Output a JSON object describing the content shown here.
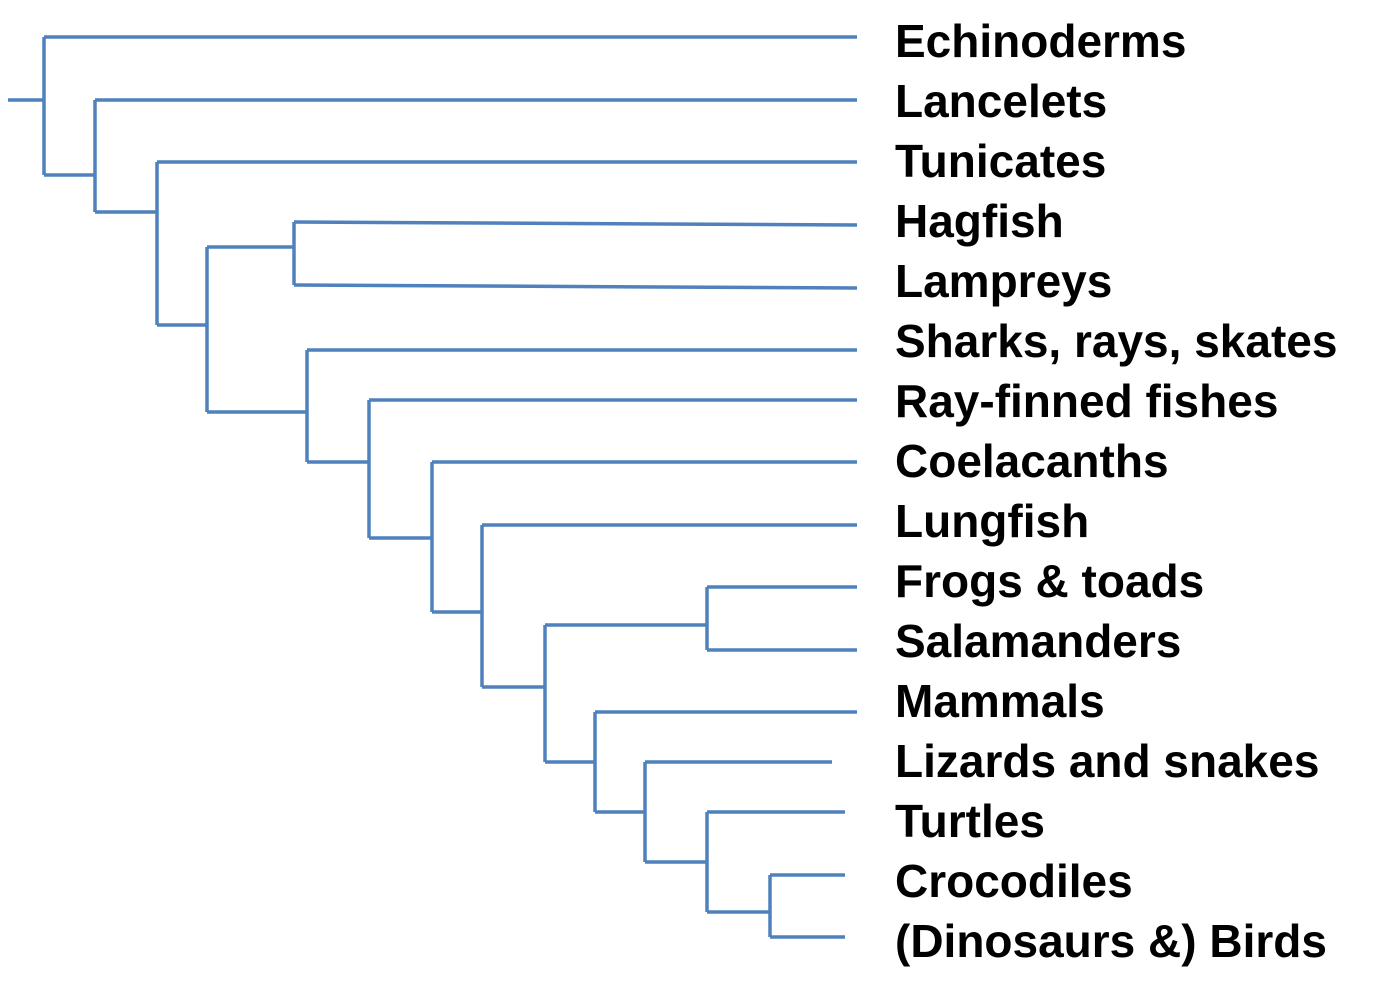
{
  "diagram": {
    "type": "cladogram",
    "line_color": "#4f81bd",
    "text_color": "#000000",
    "taxa": [
      "Echinoderms",
      "Lancelets",
      "Tunicates",
      "Hagfish",
      "Lampreys",
      "Sharks, rays, skates",
      "Ray-finned fishes",
      "Coelacanths",
      "Lungfish",
      "Frogs & toads",
      "Salamanders",
      "Mammals",
      "Lizards and snakes",
      "Turtles",
      "Crocodiles",
      "(Dinosaurs &) Birds"
    ]
  }
}
